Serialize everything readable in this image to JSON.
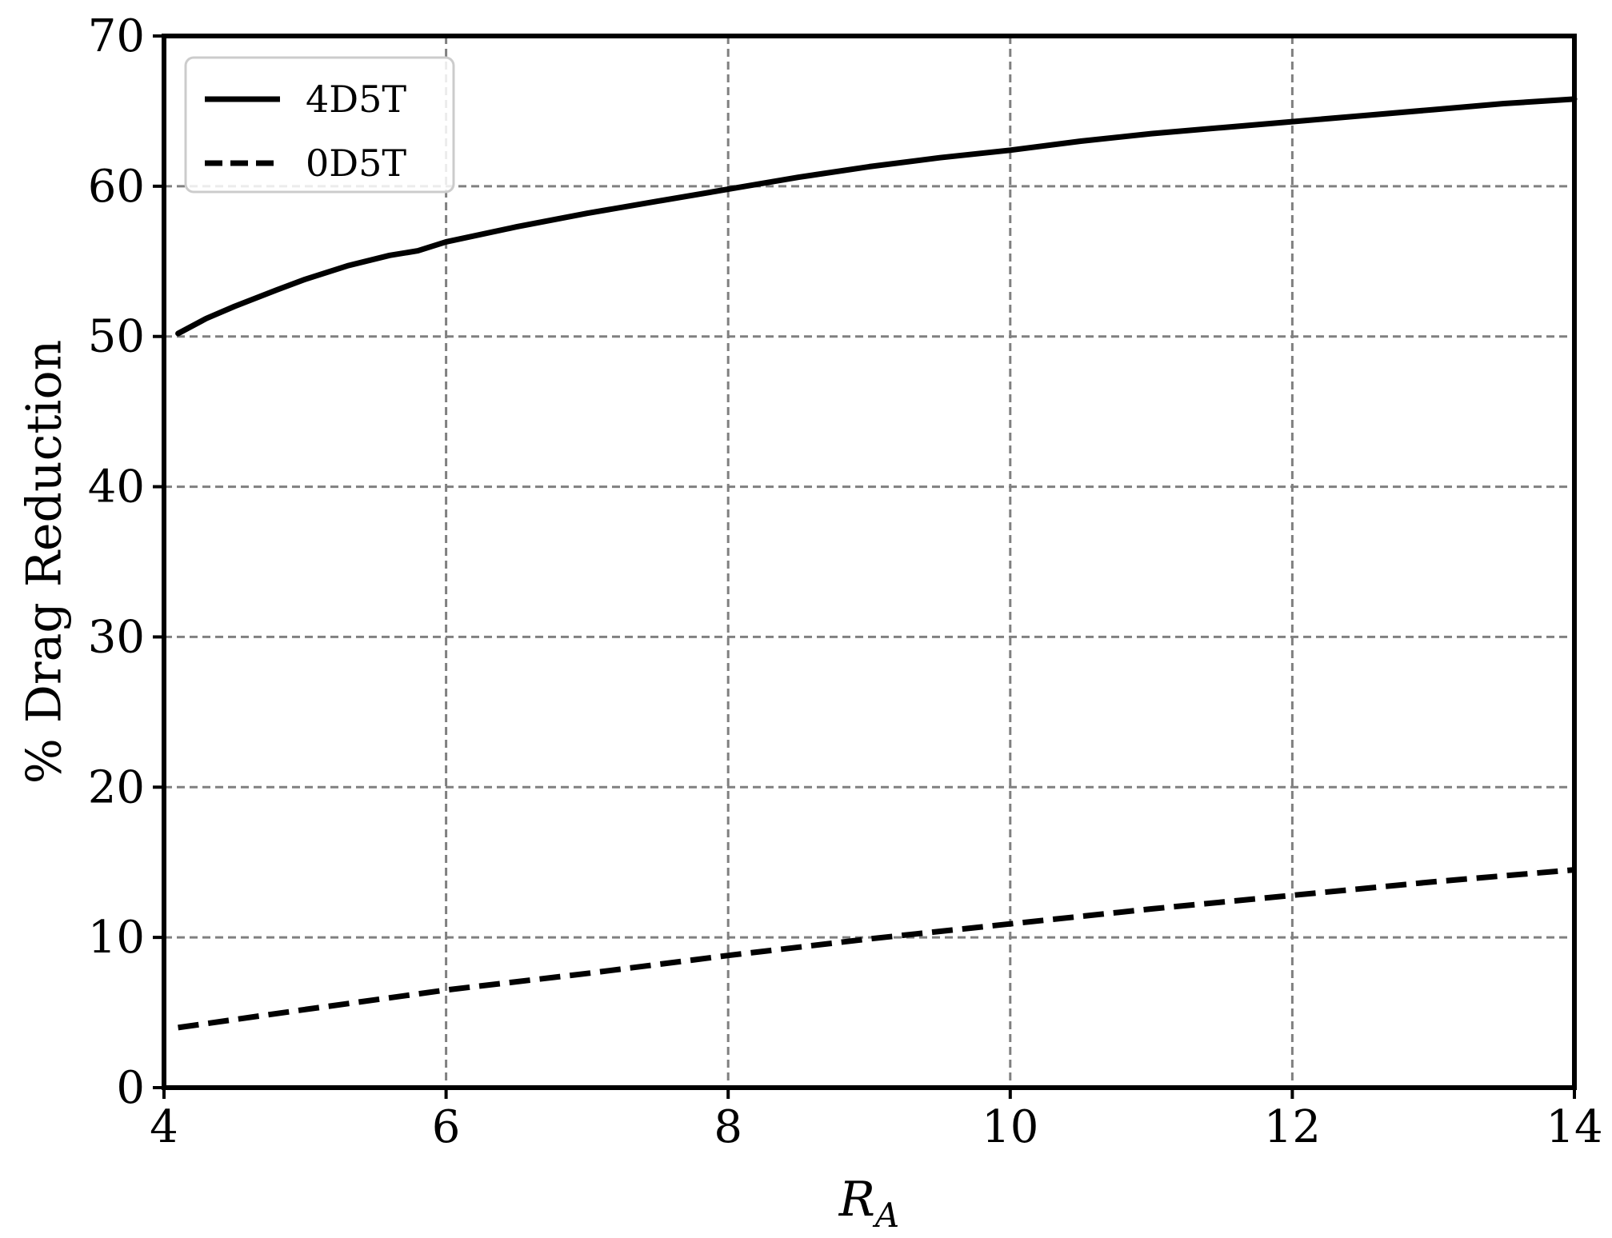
{
  "chart_data": {
    "type": "line",
    "title": "",
    "xlabel": "R",
    "xlabel_sub": "A",
    "ylabel": "% Drag Reduction",
    "xlim": [
      4,
      14
    ],
    "ylim": [
      0,
      70
    ],
    "xticks": [
      4,
      6,
      8,
      10,
      12,
      14
    ],
    "yticks": [
      0,
      10,
      20,
      30,
      40,
      50,
      60,
      70
    ],
    "grid": true,
    "legend_position": "top-left",
    "series": [
      {
        "name": "4D5T",
        "style": "solid",
        "color": "#000000",
        "x": [
          4.1,
          4.3,
          4.5,
          4.8,
          5.0,
          5.3,
          5.6,
          5.8,
          6.0,
          6.5,
          7.0,
          7.5,
          8.0,
          8.5,
          9.0,
          9.5,
          10.0,
          10.5,
          11.0,
          11.5,
          12.0,
          12.5,
          13.0,
          13.5,
          14.0
        ],
        "y": [
          50.2,
          51.2,
          52.0,
          53.1,
          53.8,
          54.7,
          55.4,
          55.7,
          56.3,
          57.3,
          58.2,
          59.0,
          59.8,
          60.6,
          61.3,
          61.9,
          62.4,
          63.0,
          63.5,
          63.9,
          64.3,
          64.7,
          65.1,
          65.5,
          65.8
        ]
      },
      {
        "name": "0D5T",
        "style": "dashed",
        "color": "#000000",
        "x": [
          4.1,
          5.0,
          6.0,
          7.0,
          8.0,
          9.0,
          10.0,
          11.0,
          12.0,
          13.0,
          14.0
        ],
        "y": [
          4.0,
          5.2,
          6.5,
          7.6,
          8.8,
          9.9,
          10.9,
          11.9,
          12.8,
          13.7,
          14.5
        ]
      }
    ]
  }
}
